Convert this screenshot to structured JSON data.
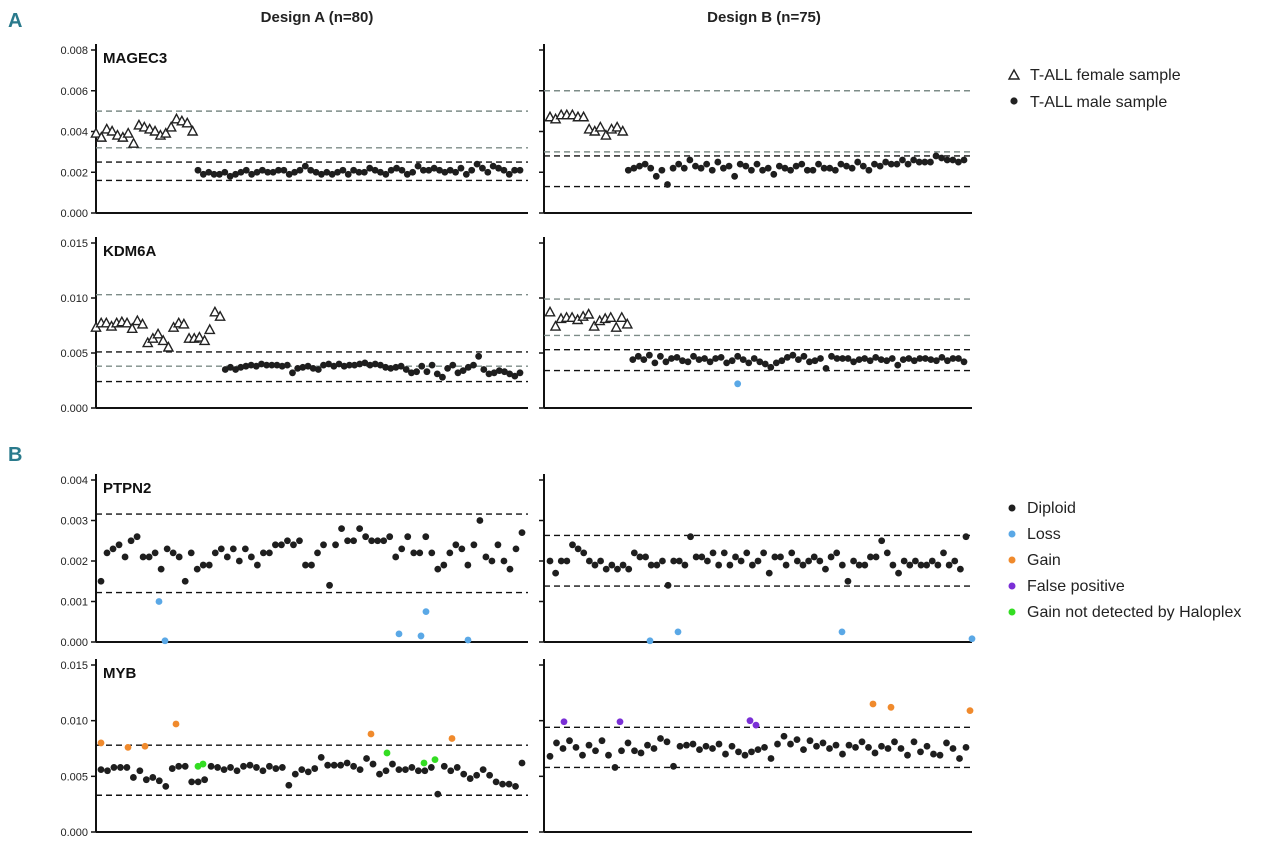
{
  "panel_letters": {
    "a": "A",
    "b": "B"
  },
  "columns": {
    "a": "Design A (n=80)",
    "b": "Design B (n=75)"
  },
  "legend_a": [
    {
      "label": "T-ALL female sample",
      "marker": "triangle-open",
      "color": "#222222"
    },
    {
      "label": "T-ALL male sample",
      "marker": "circle",
      "color": "#222222"
    }
  ],
  "legend_b": [
    {
      "label": "Diploid",
      "color": "#1e1e1e"
    },
    {
      "label": "Loss",
      "color": "#5aa8e6"
    },
    {
      "label": "Gain",
      "color": "#f08a2c"
    },
    {
      "label": "False positive",
      "color": "#7a2fd6"
    },
    {
      "label": "Gain not detected by Haloplex",
      "color": "#33dd22"
    }
  ],
  "chart_data": [
    {
      "id": "mag_a",
      "type": "scatter",
      "gene": "MAGEC3",
      "design": "Design A (n=80)",
      "ylim": [
        0,
        0.008
      ],
      "yticks": [
        "0.008",
        "0.006",
        "0.004",
        "0.002",
        "0.000"
      ],
      "hlines": [
        {
          "y": 0.005,
          "style": "gray"
        },
        {
          "y": 0.0032,
          "style": "gray"
        },
        {
          "y": 0.0025,
          "style": "black"
        },
        {
          "y": 0.0016,
          "style": "black"
        }
      ],
      "series": [
        {
          "name": "T-ALL female sample",
          "marker": "triangle",
          "values": [
            0.0039,
            0.0037,
            0.0041,
            0.004,
            0.0038,
            0.0037,
            0.0039,
            0.0034,
            0.0043,
            0.0042,
            0.0041,
            0.004,
            0.0038,
            0.0039,
            0.0042,
            0.0046,
            0.0045,
            0.0044,
            0.004
          ]
        },
        {
          "name": "T-ALL male sample",
          "marker": "circle",
          "values": [
            0.0021,
            0.0019,
            0.002,
            0.0019,
            0.0019,
            0.002,
            0.0018,
            0.0019,
            0.002,
            0.0021,
            0.0019,
            0.002,
            0.0021,
            0.002,
            0.002,
            0.0021,
            0.0021,
            0.0019,
            0.002,
            0.0021,
            0.0023,
            0.0021,
            0.002,
            0.0019,
            0.002,
            0.0019,
            0.002,
            0.0021,
            0.0019,
            0.0021,
            0.002,
            0.002,
            0.0022,
            0.0021,
            0.002,
            0.0019,
            0.0021,
            0.0022,
            0.0021,
            0.0019,
            0.002,
            0.0023,
            0.0021,
            0.0021,
            0.0022,
            0.0021,
            0.002,
            0.0021,
            0.002,
            0.0022,
            0.0019,
            0.0021,
            0.0024,
            0.0022,
            0.002,
            0.0023,
            0.0022,
            0.0021,
            0.0019,
            0.0021,
            0.0021
          ]
        }
      ]
    },
    {
      "id": "mag_b",
      "type": "scatter",
      "gene": "",
      "design": "Design B (n=75)",
      "ylim": [
        0,
        0.008
      ],
      "hlines": [
        {
          "y": 0.006,
          "style": "gray"
        },
        {
          "y": 0.003,
          "style": "gray"
        },
        {
          "y": 0.0028,
          "style": "black"
        },
        {
          "y": 0.0013,
          "style": "black"
        }
      ],
      "series": [
        {
          "name": "T-ALL female sample",
          "marker": "triangle",
          "values": [
            0.0047,
            0.0046,
            0.0048,
            0.0048,
            0.0048,
            0.0047,
            0.0047,
            0.0041,
            0.004,
            0.0042,
            0.0038,
            0.0041,
            0.0042,
            0.004
          ]
        },
        {
          "name": "T-ALL male sample",
          "marker": "circle",
          "values": [
            0.0021,
            0.0022,
            0.0023,
            0.0024,
            0.0022,
            0.0018,
            0.0021,
            0.0014,
            0.0022,
            0.0024,
            0.0022,
            0.0026,
            0.0023,
            0.0022,
            0.0024,
            0.0021,
            0.0025,
            0.0022,
            0.0023,
            0.0018,
            0.0024,
            0.0023,
            0.0021,
            0.0024,
            0.0021,
            0.0022,
            0.0019,
            0.0023,
            0.0022,
            0.0021,
            0.0023,
            0.0024,
            0.0021,
            0.0021,
            0.0024,
            0.0022,
            0.0022,
            0.0021,
            0.0024,
            0.0023,
            0.0022,
            0.0025,
            0.0023,
            0.0021,
            0.0024,
            0.0023,
            0.0025,
            0.0024,
            0.0024,
            0.0026,
            0.0024,
            0.0026,
            0.0025,
            0.0025,
            0.0025,
            0.0028,
            0.0027,
            0.0026,
            0.0026,
            0.0025,
            0.0026
          ]
        }
      ]
    },
    {
      "id": "kdm_a",
      "type": "scatter",
      "gene": "KDM6A",
      "design": "Design A (n=80)",
      "ylim": [
        0,
        0.015
      ],
      "yticks": [
        "0.015",
        "0.010",
        "0.005",
        "0.000"
      ],
      "hlines": [
        {
          "y": 0.0103,
          "style": "gray"
        },
        {
          "y": 0.0051,
          "style": "black"
        },
        {
          "y": 0.0038,
          "style": "gray"
        },
        {
          "y": 0.0024,
          "style": "black"
        }
      ],
      "series": [
        {
          "name": "T-ALL female sample",
          "marker": "triangle",
          "values": [
            0.0073,
            0.0077,
            0.0077,
            0.0074,
            0.0077,
            0.0078,
            0.0077,
            0.0072,
            0.0079,
            0.0076,
            0.0059,
            0.0063,
            0.0067,
            0.0061,
            0.0055,
            0.0073,
            0.0077,
            0.0076,
            0.0063,
            0.0063,
            0.0064,
            0.0061,
            0.0071,
            0.0087,
            0.0083
          ]
        },
        {
          "name": "T-ALL male sample",
          "marker": "circle",
          "values": [
            0.0035,
            0.0037,
            0.0035,
            0.0037,
            0.0038,
            0.0039,
            0.0038,
            0.004,
            0.0039,
            0.0039,
            0.0039,
            0.0038,
            0.0039,
            0.0032,
            0.0036,
            0.0037,
            0.0038,
            0.0036,
            0.0035,
            0.0039,
            0.004,
            0.0038,
            0.004,
            0.0038,
            0.0039,
            0.0039,
            0.004,
            0.0041,
            0.0039,
            0.004,
            0.0039,
            0.0037,
            0.0036,
            0.0037,
            0.0038,
            0.0035,
            0.0032,
            0.0033,
            0.0038,
            0.0033,
            0.0039,
            0.0031,
            0.0028,
            0.0036,
            0.0039,
            0.0032,
            0.0034,
            0.0037,
            0.0039,
            0.0047,
            0.0035,
            0.0031,
            0.0032,
            0.0034,
            0.0033,
            0.0031,
            0.0029,
            0.0032
          ]
        }
      ]
    },
    {
      "id": "kdm_b",
      "type": "scatter",
      "gene": "",
      "design": "Design B (n=75)",
      "ylim": [
        0,
        0.015
      ],
      "hlines": [
        {
          "y": 0.0099,
          "style": "gray"
        },
        {
          "y": 0.0066,
          "style": "gray"
        },
        {
          "y": 0.0053,
          "style": "black"
        },
        {
          "y": 0.0034,
          "style": "black"
        }
      ],
      "series": [
        {
          "name": "T-ALL female sample",
          "marker": "triangle",
          "values": [
            0.0087,
            0.0074,
            0.0081,
            0.0082,
            0.0082,
            0.008,
            0.0083,
            0.0085,
            0.0074,
            0.0079,
            0.0081,
            0.0082,
            0.0073,
            0.0082,
            0.0076
          ]
        },
        {
          "name": "T-ALL male sample",
          "marker": "circle",
          "values": [
            0.0044,
            0.0047,
            0.0044,
            0.0048,
            0.0041,
            0.0047,
            0.0042,
            0.0045,
            0.0046,
            0.0043,
            0.0042,
            0.0047,
            0.0044,
            0.0045,
            0.0042,
            0.0045,
            0.0046,
            0.0041,
            0.0043,
            0.0047,
            0.0044,
            0.0041,
            0.0045,
            0.0042,
            0.004,
            0.0037,
            0.0041,
            0.0043,
            0.0046,
            0.0048,
            0.0044,
            0.0047,
            0.0042,
            0.0043,
            0.0045,
            0.0036,
            0.0047,
            0.0045,
            0.0045,
            0.0045,
            0.0042,
            0.0044,
            0.0045,
            0.0043,
            0.0046,
            0.0044,
            0.0043,
            0.0045,
            0.0039,
            0.0044,
            0.0045,
            0.0043,
            0.0045,
            0.0045,
            0.0044,
            0.0043,
            0.0046,
            0.0043,
            0.0045,
            0.0045,
            0.0042
          ]
        },
        {
          "name": "Loss",
          "marker": "circle",
          "values": [
            {
              "i": 20,
              "y": 0.0022
            }
          ]
        }
      ]
    },
    {
      "id": "ptpn_a",
      "type": "scatter",
      "gene": "PTPN2",
      "design": "Design A (n=80)",
      "ylim": [
        0,
        0.004
      ],
      "yticks": [
        "0.004",
        "0.003",
        "0.002",
        "0.001",
        "0.000"
      ],
      "hlines": [
        {
          "y": 0.00316,
          "style": "black"
        },
        {
          "y": 0.00122,
          "style": "black"
        }
      ],
      "series": [
        {
          "name": "Diploid",
          "marker": "circle",
          "values": [
            0.0015,
            0.0022,
            0.0023,
            0.0024,
            0.0021,
            0.0025,
            0.0026,
            0.0021,
            0.0021,
            0.0022,
            0.0018,
            0.0023,
            0.0022,
            0.0021,
            0.0015,
            0.0022,
            0.0018,
            0.0019,
            0.0019,
            0.0022,
            0.0023,
            0.0021,
            0.0023,
            0.002,
            0.0023,
            0.0021,
            0.0019,
            0.0022,
            0.0022,
            0.0024,
            0.0024,
            0.0025,
            0.0024,
            0.0025,
            0.0019,
            0.0019,
            0.0022,
            0.0024,
            0.0014,
            0.0024,
            0.0028,
            0.0025,
            0.0025,
            0.0028,
            0.0026,
            0.0025,
            0.0025,
            0.0025,
            0.0026,
            0.0021,
            0.0023,
            0.0026,
            0.0022,
            0.0022,
            0.0026,
            0.0022,
            0.0018,
            0.0019,
            0.0022,
            0.0024,
            0.0023,
            0.0019,
            0.0024,
            0.003,
            0.0021,
            0.002,
            0.0024,
            0.002,
            0.0018,
            0.0023,
            0.0027
          ]
        },
        {
          "name": "Loss",
          "marker": "circle",
          "values": [
            0.001,
            3e-05,
            0.0002,
            0.00015,
            0.00075,
            5e-05
          ]
        }
      ]
    },
    {
      "id": "ptpn_b",
      "type": "scatter",
      "gene": "",
      "design": "Design B (n=75)",
      "ylim": [
        0,
        0.004
      ],
      "hlines": [
        {
          "y": 0.00263,
          "style": "black"
        },
        {
          "y": 0.00138,
          "style": "black"
        }
      ],
      "series": [
        {
          "name": "Diploid",
          "marker": "circle",
          "values": [
            0.002,
            0.0017,
            0.002,
            0.002,
            0.0024,
            0.0023,
            0.0022,
            0.002,
            0.0019,
            0.002,
            0.0018,
            0.0019,
            0.0018,
            0.0019,
            0.0018,
            0.0022,
            0.0021,
            0.0021,
            0.0019,
            0.0019,
            0.002,
            0.0014,
            0.002,
            0.002,
            0.0019,
            0.0026,
            0.0021,
            0.0021,
            0.002,
            0.0022,
            0.0019,
            0.0022,
            0.0019,
            0.0021,
            0.002,
            0.0022,
            0.0019,
            0.002,
            0.0022,
            0.0017,
            0.0021,
            0.0021,
            0.0019,
            0.0022,
            0.002,
            0.0019,
            0.002,
            0.0021,
            0.002,
            0.0018,
            0.0021,
            0.0022,
            0.0019,
            0.0015,
            0.002,
            0.0019,
            0.0019,
            0.0021,
            0.0021,
            0.0025,
            0.0022,
            0.0019,
            0.0017,
            0.002,
            0.0019,
            0.002,
            0.0019,
            0.0019,
            0.002,
            0.0019,
            0.0022,
            0.0019,
            0.002,
            0.0018,
            0.0026
          ]
        },
        {
          "name": "Loss",
          "marker": "circle",
          "values": [
            3e-05,
            0.00025,
            0.00025,
            8e-05
          ]
        }
      ]
    },
    {
      "id": "myb_a",
      "type": "scatter",
      "gene": "MYB",
      "design": "Design A (n=80)",
      "ylim": [
        0,
        0.015
      ],
      "yticks": [
        "0.015",
        "0.010",
        "0.005",
        "0.000"
      ],
      "hlines": [
        {
          "y": 0.0078,
          "style": "black"
        },
        {
          "y": 0.0033,
          "style": "black"
        }
      ],
      "series": [
        {
          "name": "Diploid",
          "marker": "circle",
          "values": [
            0.0056,
            0.0055,
            0.0058,
            0.0058,
            0.0058,
            0.0049,
            0.0055,
            0.0047,
            0.0049,
            0.0046,
            0.0041,
            0.0057,
            0.0059,
            0.0059,
            0.0045,
            0.0045,
            0.0047,
            0.0059,
            0.0058,
            0.0056,
            0.0058,
            0.0055,
            0.0059,
            0.006,
            0.0058,
            0.0055,
            0.0059,
            0.0057,
            0.0058,
            0.0042,
            0.0052,
            0.0056,
            0.0054,
            0.0057,
            0.0067,
            0.006,
            0.006,
            0.006,
            0.0062,
            0.0059,
            0.0056,
            0.0066,
            0.0061,
            0.0052,
            0.0055,
            0.0061,
            0.0056,
            0.0056,
            0.0058,
            0.0055,
            0.0055,
            0.0058,
            0.0034,
            0.0059,
            0.0055,
            0.0058,
            0.0052,
            0.0048,
            0.0051,
            0.0056,
            0.0051,
            0.0045,
            0.0043,
            0.0043,
            0.0041,
            0.0062
          ]
        },
        {
          "name": "Gain",
          "marker": "circle",
          "values": [
            0.008,
            0.0076,
            0.0077,
            0.0097,
            0.0088,
            0.0084
          ]
        },
        {
          "name": "Gain not detected by Haloplex",
          "marker": "circle",
          "values": [
            0.0059,
            0.0061,
            0.0071,
            0.0062,
            0.0065
          ]
        }
      ]
    },
    {
      "id": "myb_b",
      "type": "scatter",
      "gene": "",
      "design": "Design B (n=75)",
      "ylim": [
        0,
        0.015
      ],
      "hlines": [
        {
          "y": 0.0094,
          "style": "black"
        },
        {
          "y": 0.0058,
          "style": "black"
        }
      ],
      "series": [
        {
          "name": "Diploid",
          "marker": "circle",
          "values": [
            0.0068,
            0.008,
            0.0075,
            0.0082,
            0.0076,
            0.0069,
            0.0078,
            0.0073,
            0.0082,
            0.0069,
            0.0058,
            0.0073,
            0.008,
            0.0073,
            0.0071,
            0.0078,
            0.0075,
            0.0084,
            0.0081,
            0.0059,
            0.0077,
            0.0078,
            0.0079,
            0.0074,
            0.0077,
            0.0075,
            0.0079,
            0.007,
            0.0077,
            0.0072,
            0.0069,
            0.0072,
            0.0074,
            0.0076,
            0.0066,
            0.0079,
            0.0086,
            0.0079,
            0.0083,
            0.0074,
            0.0082,
            0.0077,
            0.008,
            0.0075,
            0.0078,
            0.007,
            0.0078,
            0.0076,
            0.0081,
            0.0076,
            0.0071,
            0.0077,
            0.0075,
            0.0081,
            0.0075,
            0.0069,
            0.0081,
            0.0072,
            0.0077,
            0.007,
            0.0069,
            0.008,
            0.0075,
            0.0066,
            0.0076
          ]
        },
        {
          "name": "Gain",
          "marker": "circle",
          "values": [
            0.0115,
            0.0112,
            0.0109
          ]
        },
        {
          "name": "False positive",
          "marker": "circle",
          "values": [
            0.0099,
            0.0099,
            0.01,
            0.0096
          ]
        }
      ]
    }
  ]
}
